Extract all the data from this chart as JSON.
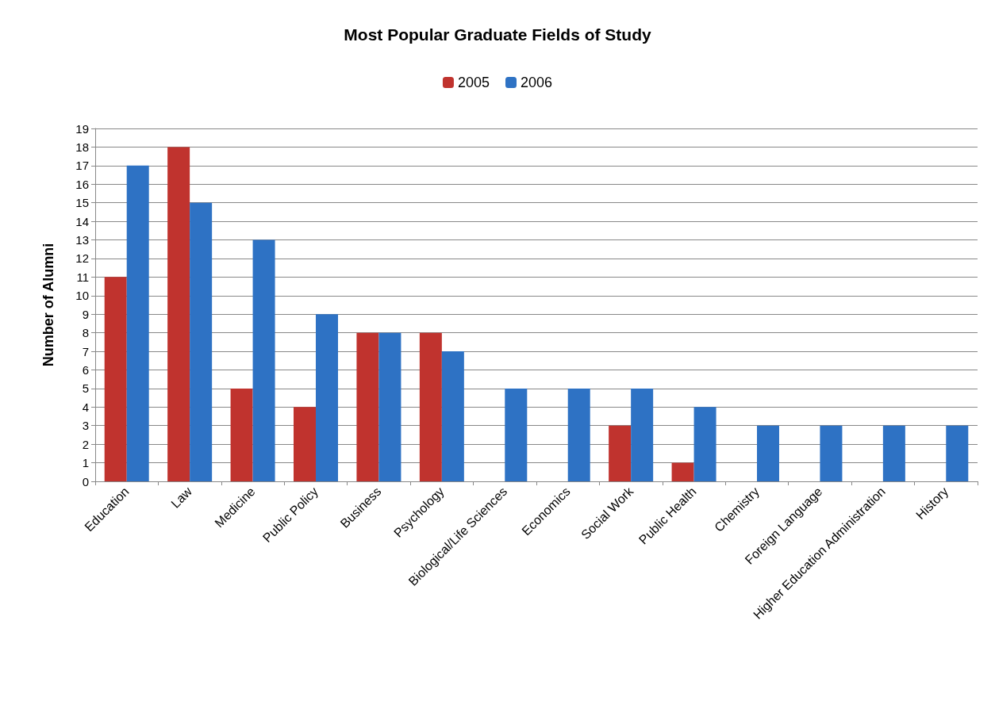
{
  "chart_data": {
    "type": "bar",
    "title": "Most Popular Graduate Fields of Study",
    "ylabel": "Number of Alumni",
    "categories": [
      "Education",
      "Law",
      "Medicine",
      "Public Policy",
      "Business",
      "Psychology",
      "Biological/Life Sciences",
      "Economics",
      "Social Work",
      "Public Health",
      "Chemistry",
      "Foreign Language",
      "Higher Education Administration",
      "History"
    ],
    "series": [
      {
        "name": "2005",
        "color": "#c0332e",
        "values": [
          11,
          18,
          5,
          4,
          8,
          8,
          0,
          0,
          3,
          1,
          0,
          0,
          0,
          0
        ]
      },
      {
        "name": "2006",
        "color": "#2e72c4",
        "values": [
          17,
          15,
          13,
          9,
          8,
          7,
          5,
          5,
          5,
          4,
          3,
          3,
          3,
          3
        ]
      }
    ],
    "ylim": [
      0,
      19
    ],
    "yticks": [
      0,
      1,
      2,
      3,
      4,
      5,
      6,
      7,
      8,
      9,
      10,
      11,
      12,
      13,
      14,
      15,
      16,
      17,
      18,
      19
    ],
    "grid": "y",
    "legend": "top"
  }
}
